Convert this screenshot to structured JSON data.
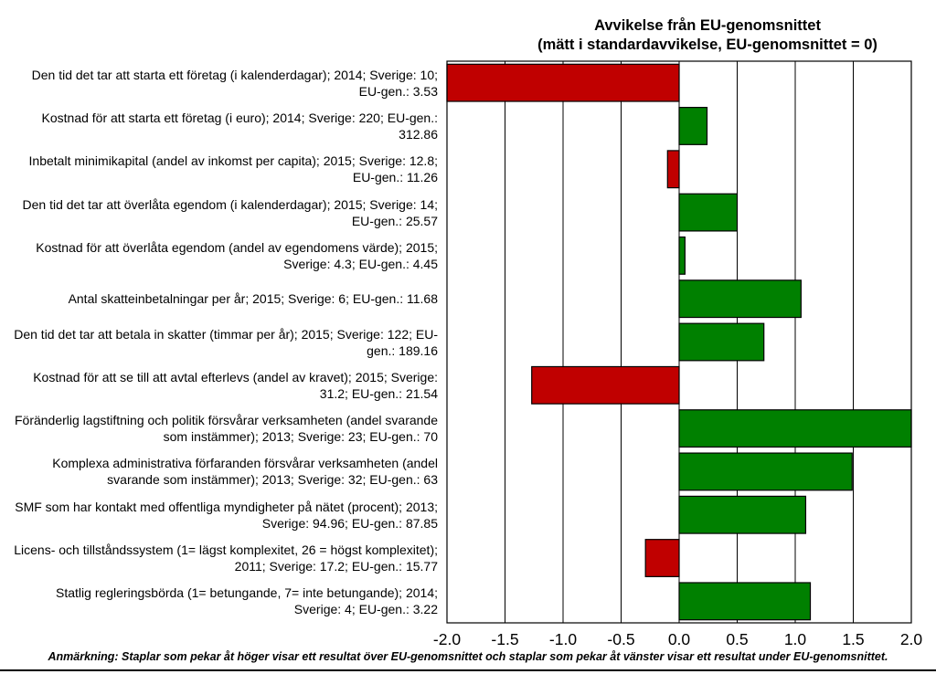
{
  "chart_data": {
    "type": "bar",
    "orientation": "horizontal",
    "title": [
      "Avvikelse från EU-genomsnittet",
      "(mätt i standardavvikelse, EU-genomsnittet = 0)"
    ],
    "xlim": [
      -2.0,
      2.0
    ],
    "x_ticks": [
      "-2.0",
      "-1.5",
      "-1.0",
      "-0.5",
      "0.0",
      "0.5",
      "1.0",
      "1.5",
      "2.0"
    ],
    "x_tick_values": [
      -2.0,
      -1.5,
      -1.0,
      -0.5,
      0.0,
      0.5,
      1.0,
      1.5,
      2.0
    ],
    "grid": true,
    "colors": {
      "positive": "#008000",
      "negative": "#c00000",
      "axis": "#000000"
    },
    "categories": [
      [
        "Den tid det tar att starta ett företag (i kalenderdagar); 2014; Sverige: 10;",
        "EU-gen.: 3.53"
      ],
      [
        "Kostnad för att starta ett företag (i euro); 2014; Sverige: 220; EU-gen.:",
        "312.86"
      ],
      [
        "Inbetalt minimikapital (andel av inkomst per capita); 2015; Sverige: 12.8;",
        "EU-gen.: 11.26"
      ],
      [
        "Den tid det tar att överlåta egendom (i kalenderdagar); 2015; Sverige: 14;",
        "EU-gen.: 25.57"
      ],
      [
        "Kostnad för att överlåta egendom (andel av egendomens värde); 2015;",
        "Sverige: 4.3; EU-gen.: 4.45"
      ],
      [
        "Antal skatteinbetalningar per år; 2015; Sverige: 6; EU-gen.: 11.68"
      ],
      [
        "Den tid det tar att betala in skatter (timmar per år); 2015; Sverige: 122; EU-",
        "gen.: 189.16"
      ],
      [
        "Kostnad för att se till att avtal efterlevs (andel av kravet); 2015; Sverige:",
        "31.2; EU-gen.: 21.54"
      ],
      [
        "Föränderlig lagstiftning och politik försvårar verksamheten (andel svarande",
        "som instämmer); 2013; Sverige: 23; EU-gen.: 70"
      ],
      [
        "Komplexa administrativa förfaranden försvårar verksamheten (andel",
        "svarande som instämmer); 2013; Sverige: 32; EU-gen.: 63"
      ],
      [
        "SMF som har kontakt med offentliga myndigheter på nätet (procent); 2013;",
        "Sverige: 94.96; EU-gen.: 87.85"
      ],
      [
        "Licens- och tillståndssystem (1= lägst komplexitet, 26 = högst komplexitet);",
        "2011; Sverige: 17.2; EU-gen.: 15.77"
      ],
      [
        "Statlig regleringsbörda (1= betungande, 7= inte betungande); 2014;",
        "Sverige: 4; EU-gen.: 3.22"
      ]
    ],
    "values": [
      -2.0,
      0.24,
      -0.1,
      0.5,
      0.05,
      1.05,
      0.73,
      -1.27,
      2.0,
      1.49,
      1.09,
      -0.29,
      1.13
    ],
    "note": "Anmärkning: Staplar som pekar åt höger visar ett resultat över EU-genomsnittet och staplar som pekar åt vänster visar ett resultat under EU-genomsnittet."
  }
}
